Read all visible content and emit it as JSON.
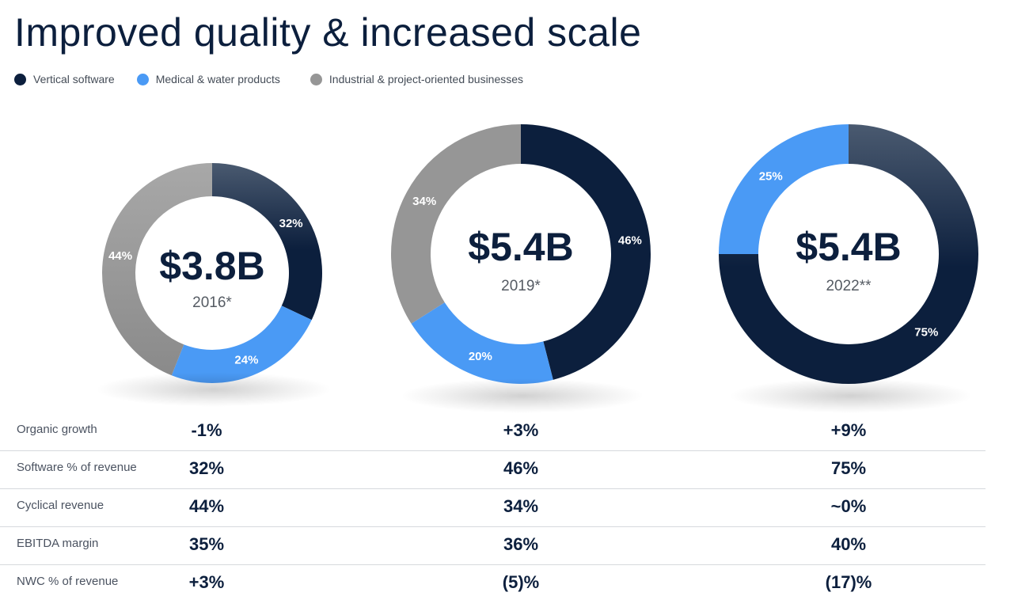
{
  "title": "Improved quality & increased scale",
  "legend": [
    {
      "label": "Vertical software",
      "color": "#0c1f3d"
    },
    {
      "label": "Medical & water products",
      "color": "#4a9af5"
    },
    {
      "label": "Industrial & project-oriented businesses",
      "color": "#969696"
    }
  ],
  "chart_data": [
    {
      "type": "pie",
      "center_value": "$3.8B",
      "center_label": "2016*",
      "series": [
        {
          "name": "Vertical software",
          "value": 32,
          "label": "32%"
        },
        {
          "name": "Medical & water products",
          "value": 24,
          "label": "24%"
        },
        {
          "name": "Industrial & project-oriented businesses",
          "value": 44,
          "label": "44%"
        }
      ]
    },
    {
      "type": "pie",
      "center_value": "$5.4B",
      "center_label": "2019*",
      "series": [
        {
          "name": "Vertical software",
          "value": 46,
          "label": "46%"
        },
        {
          "name": "Medical & water products",
          "value": 20,
          "label": "20%"
        },
        {
          "name": "Industrial & project-oriented businesses",
          "value": 34,
          "label": "34%"
        }
      ]
    },
    {
      "type": "pie",
      "center_value": "$5.4B",
      "center_label": "2022**",
      "series": [
        {
          "name": "Vertical software",
          "value": 75,
          "label": "75%"
        },
        {
          "name": "Medical & water products",
          "value": 25,
          "label": "25%"
        },
        {
          "name": "Industrial & project-oriented businesses",
          "value": 0,
          "label": ""
        }
      ]
    }
  ],
  "metrics": [
    {
      "label": "Organic growth",
      "values": [
        "-1%",
        "+3%",
        "+9%"
      ]
    },
    {
      "label": "Software % of revenue",
      "values": [
        "32%",
        "46%",
        "75%"
      ]
    },
    {
      "label": "Cyclical revenue",
      "values": [
        "44%",
        "34%",
        "~0%"
      ]
    },
    {
      "label": "EBITDA margin",
      "values": [
        "35%",
        "36%",
        "40%"
      ]
    },
    {
      "label": "NWC % of revenue",
      "values": [
        "+3%",
        "(5)%",
        "(17)%"
      ]
    }
  ]
}
